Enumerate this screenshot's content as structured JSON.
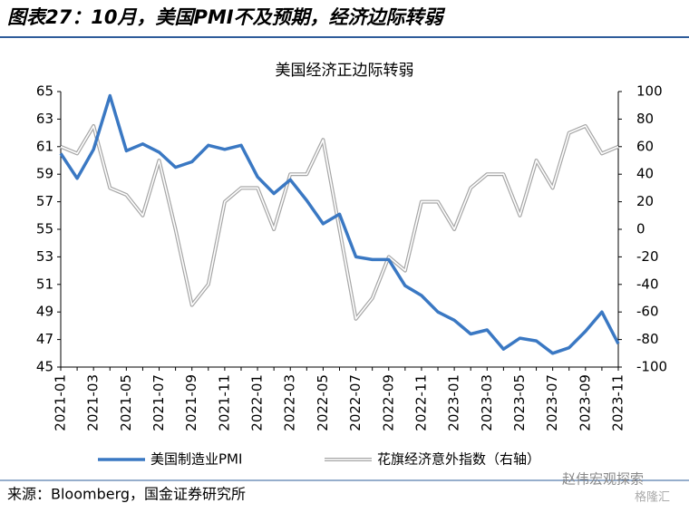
{
  "header": {
    "title": "图表27：10月，美国PMI不及预期，经济边际转弱"
  },
  "chart_data": {
    "type": "line",
    "title": "美国经济正边际转弱",
    "categories": [
      "2021-01",
      null,
      "2021-03",
      null,
      "2021-05",
      null,
      "2021-07",
      null,
      "2021-09",
      null,
      "2021-11",
      null,
      "2022-01",
      null,
      "2022-03",
      null,
      "2022-05",
      null,
      "2022-07",
      null,
      "2022-09",
      null,
      "2022-11",
      null,
      "2023-01",
      null,
      "2023-03",
      null,
      "2023-05",
      null,
      "2023-07",
      null,
      "2023-09",
      null,
      "2023-11"
    ],
    "series": [
      {
        "name": "美国制造业PMI",
        "color": "#3a78c3",
        "axis": "y",
        "values": [
          60.5,
          58.7,
          60.8,
          64.7,
          60.7,
          61.2,
          60.6,
          59.5,
          59.9,
          61.1,
          60.8,
          61.1,
          58.8,
          57.6,
          58.6,
          57.1,
          55.4,
          56.1,
          53.0,
          52.8,
          52.8,
          50.9,
          50.2,
          49.0,
          48.4,
          47.4,
          47.7,
          46.3,
          47.1,
          46.9,
          46.0,
          46.4,
          47.6,
          49.0,
          46.7
        ]
      },
      {
        "name": "花旗经济意外指数（右轴）",
        "color": "#a6a6a6",
        "axis": "y2",
        "values": [
          60,
          55,
          75,
          30,
          25,
          10,
          50,
          0,
          -55,
          -40,
          20,
          30,
          30,
          0,
          40,
          40,
          65,
          0,
          -65,
          -50,
          -20,
          -30,
          20,
          20,
          0,
          30,
          40,
          40,
          10,
          50,
          30,
          70,
          75,
          55,
          60
        ]
      }
    ],
    "ylim": [
      45,
      65
    ],
    "yticks": [
      45,
      47,
      49,
      51,
      53,
      55,
      57,
      59,
      61,
      63,
      65
    ],
    "y2lim": [
      -100,
      100
    ],
    "y2ticks": [
      -100,
      -80,
      -60,
      -40,
      -20,
      0,
      20,
      40,
      60,
      80,
      100
    ]
  },
  "footer": {
    "source": "来源：Bloomberg，国金证券研究所",
    "watermark": "赵伟宏观探索",
    "watermark2": "格隆汇"
  }
}
